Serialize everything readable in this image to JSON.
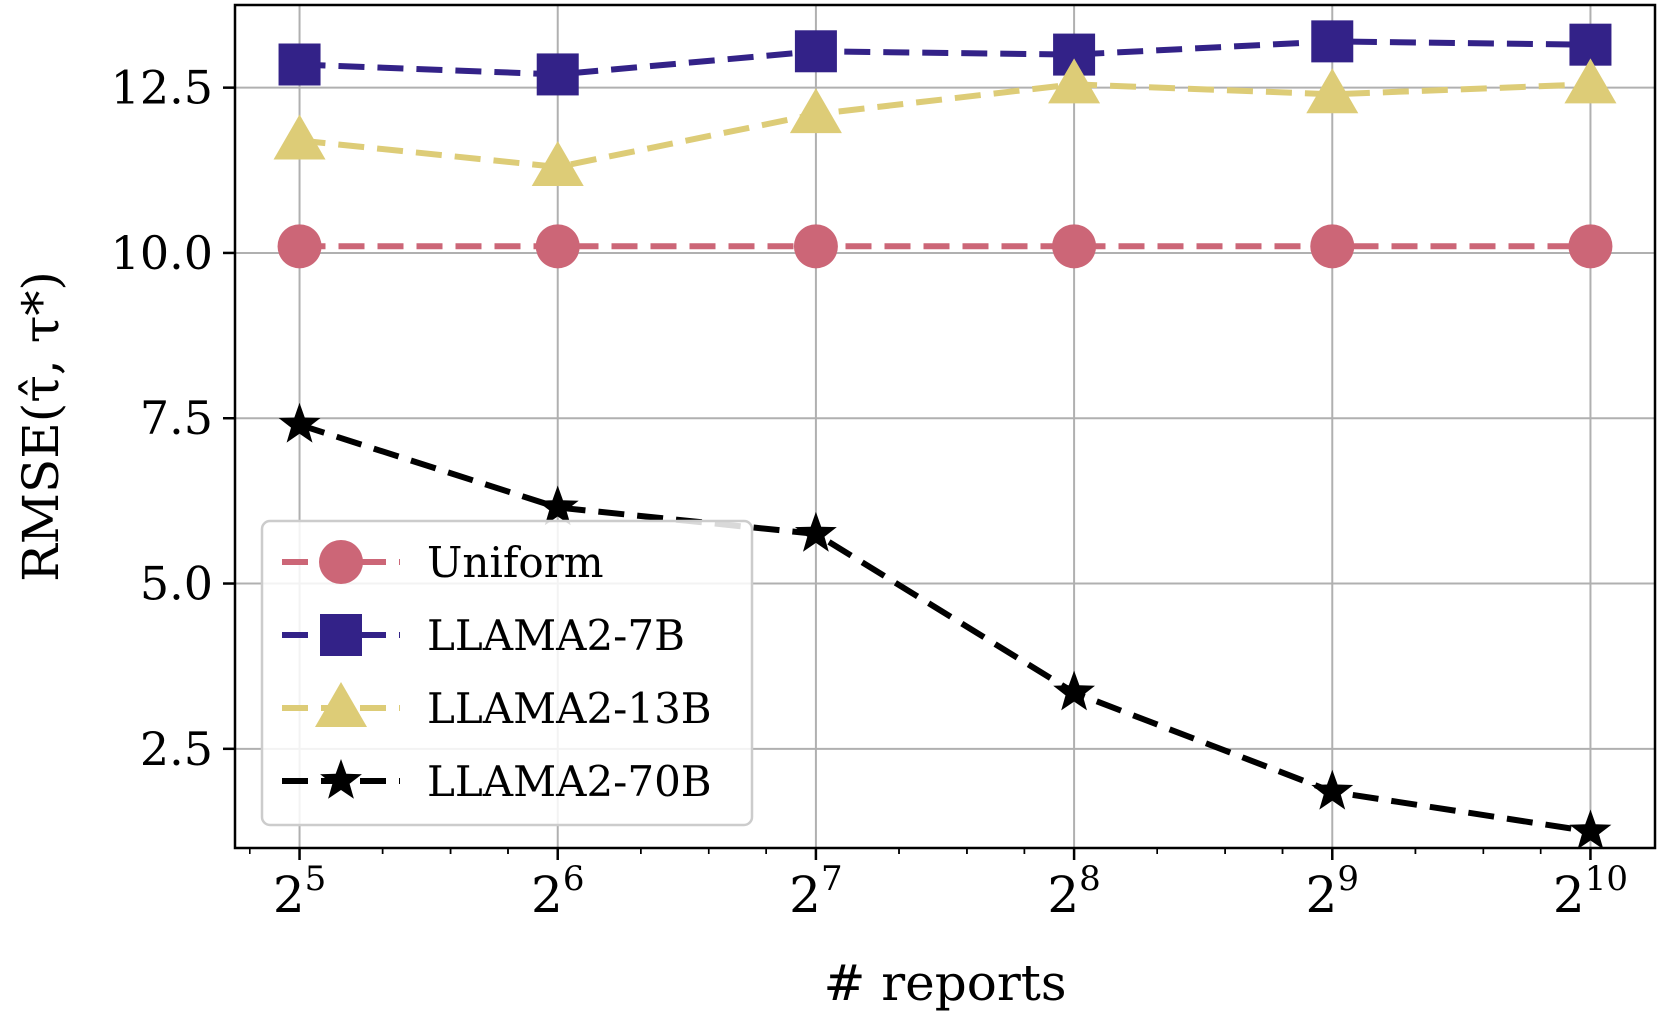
{
  "chart_data": {
    "type": "line",
    "title": "",
    "xlabel": "# reports",
    "ylabel": "RMSE(τ̂, τ*)",
    "x_scale": "log2",
    "x": [
      32,
      64,
      128,
      256,
      512,
      1024
    ],
    "x_exponents": [
      5,
      6,
      7,
      8,
      9,
      10
    ],
    "x_tick_base": "2",
    "x_tick_exponents": [
      "5",
      "6",
      "7",
      "8",
      "9",
      "10"
    ],
    "xlim_exponent": [
      4.75,
      10.25
    ],
    "ylim": [
      1.0,
      13.75
    ],
    "yticks": [
      2.5,
      5.0,
      7.5,
      10.0,
      12.5
    ],
    "ytick_labels": [
      "2.5",
      "5.0",
      "7.5",
      "10.0",
      "12.5"
    ],
    "grid": true,
    "legend_position": "lower-left",
    "series": [
      {
        "name": "Uniform",
        "color": "#cc6677",
        "marker": "circle",
        "linestyle": "dashed",
        "values": [
          10.1,
          10.1,
          10.1,
          10.1,
          10.1,
          10.1
        ]
      },
      {
        "name": "LLAMA2-7B",
        "color": "#332288",
        "marker": "square",
        "linestyle": "dashed",
        "values": [
          12.85,
          12.7,
          13.05,
          13.0,
          13.2,
          13.15
        ]
      },
      {
        "name": "LLAMA2-13B",
        "color": "#ddcc77",
        "marker": "triangle",
        "linestyle": "dashed",
        "values": [
          11.7,
          11.3,
          12.1,
          12.55,
          12.4,
          12.55
        ]
      },
      {
        "name": "LLAMA2-70B",
        "color": "#000000",
        "marker": "star",
        "linestyle": "dashed",
        "values": [
          7.4,
          6.15,
          5.75,
          3.35,
          1.85,
          1.25
        ]
      }
    ]
  }
}
